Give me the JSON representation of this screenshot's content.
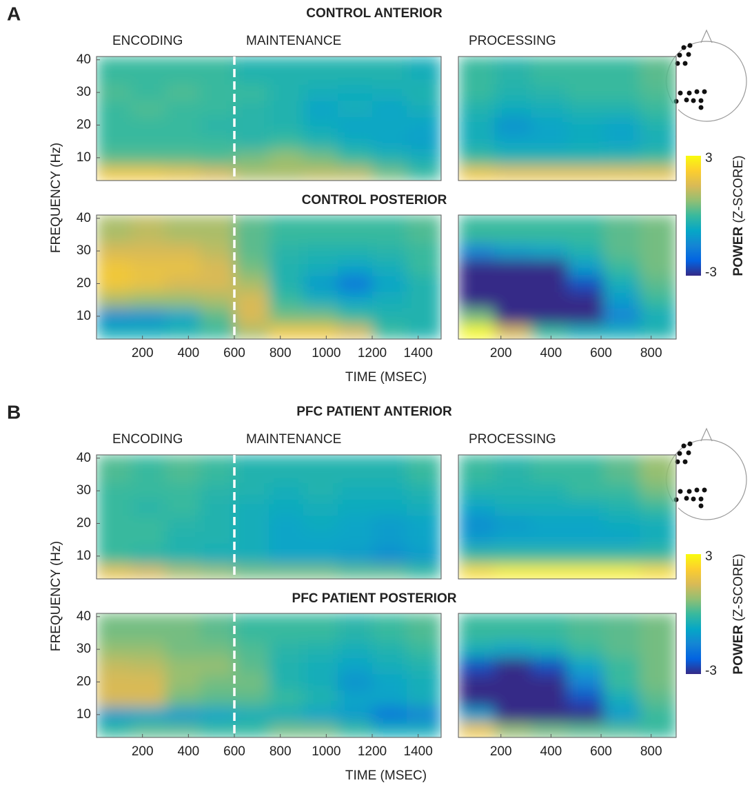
{
  "figure": {
    "colormap": [
      "#352a87",
      "#0363e1",
      "#1485d4",
      "#06a7c6",
      "#38b99e",
      "#92bf73",
      "#d9ba56",
      "#fcce2e",
      "#f9fb0e"
    ],
    "colorbar_lim": [
      -3,
      3
    ],
    "sections": [
      {
        "letter": "A",
        "anterior_title": "CONTROL ANTERIOR",
        "posterior_title": "CONTROL POSTERIOR",
        "phases": [
          "ENCODING",
          "MAINTENANCE",
          "PROCESSING"
        ],
        "ylabel": "FREQUENCY (Hz)",
        "xlabel": "TIME (MSEC)",
        "colorbar": {
          "ticks": [
            3,
            -3
          ],
          "label_bold": "POWER",
          "label": "(Z-SCORE)"
        }
      },
      {
        "letter": "B",
        "anterior_title": "PFC PATIENT ANTERIOR",
        "posterior_title": "PFC PATIENT POSTERIOR",
        "phases": [
          "ENCODING",
          "MAINTENANCE",
          "PROCESSING"
        ],
        "ylabel": "FREQUENCY (Hz)",
        "xlabel": "TIME (MSEC)",
        "colorbar": {
          "ticks": [
            3,
            -3
          ],
          "label_bold": "POWER",
          "label": "(Z-SCORE)"
        }
      }
    ]
  },
  "chart_data": [
    {
      "type": "heatmap",
      "xlim": [
        0,
        1500
      ],
      "ylim": [
        3,
        41
      ],
      "yticks": [
        10,
        20,
        30,
        40
      ],
      "event_line": 600,
      "x_bins": [
        0,
        150,
        300,
        450,
        600,
        750,
        900,
        1050,
        1200,
        1350,
        1500
      ],
      "y_bins": [
        3,
        7.5,
        12.5,
        17.5,
        22.5,
        27.5,
        32.5,
        41
      ],
      "z": [
        [
          2,
          2,
          1.8,
          1.5,
          1,
          1,
          1.2,
          1.2,
          0.5,
          0
        ],
        [
          0.3,
          0.3,
          0.3,
          0.2,
          0.5,
          0.8,
          0.5,
          0,
          -0.3,
          -0.5
        ],
        [
          0,
          0,
          0,
          0,
          -0.2,
          0,
          -0.3,
          -0.6,
          -0.8,
          -0.9
        ],
        [
          0,
          0,
          0,
          -0.2,
          -0.2,
          -0.3,
          -0.6,
          -0.8,
          -0.7,
          -0.8
        ],
        [
          0,
          0.2,
          0,
          0,
          -0.2,
          -0.3,
          -0.8,
          -0.5,
          -0.8,
          -0.5
        ],
        [
          0.2,
          0,
          0.2,
          0,
          0,
          -0.3,
          -0.5,
          -0.6,
          -0.5,
          -0.3
        ],
        [
          0,
          0,
          0,
          0,
          -0.3,
          -0.3,
          -0.3,
          -0.3,
          -0.3,
          -0.5
        ]
      ]
    },
    {
      "type": "heatmap",
      "xlim": [
        30,
        900
      ],
      "ylim": [
        3,
        41
      ],
      "x_bins": [
        30,
        175,
        320,
        465,
        610,
        755,
        900
      ],
      "y_bins": [
        3,
        7.5,
        12.5,
        17.5,
        22.5,
        27.5,
        32.5,
        41
      ],
      "z": [
        [
          2,
          1.8,
          1.8,
          1.8,
          1.8,
          1.8
        ],
        [
          0,
          -0.3,
          -0.3,
          -0.3,
          -0.2,
          0
        ],
        [
          -0.5,
          -0.8,
          -0.8,
          -0.6,
          -0.8,
          -0.5
        ],
        [
          -0.5,
          -1.2,
          -0.8,
          -0.6,
          -0.8,
          -0.3
        ],
        [
          -0.3,
          -0.6,
          -0.5,
          -0.3,
          -0.3,
          0
        ],
        [
          0,
          -0.3,
          -0.2,
          0,
          0,
          0.2
        ],
        [
          0,
          -0.2,
          0,
          0,
          0,
          0.3
        ]
      ]
    },
    {
      "type": "heatmap",
      "xlim": [
        0,
        1500
      ],
      "ylim": [
        3,
        41
      ],
      "yticks": [
        10,
        20,
        30,
        40
      ],
      "xticks": [
        200,
        400,
        600,
        800,
        1000,
        1200,
        1400
      ],
      "event_line": 600,
      "x_bins": [
        0,
        150,
        300,
        450,
        600,
        750,
        900,
        1050,
        1200,
        1350,
        1500
      ],
      "y_bins": [
        3,
        7.5,
        12.5,
        17.5,
        22.5,
        27.5,
        32.5,
        41
      ],
      "z": [
        [
          -0.5,
          -0.5,
          -0.3,
          0,
          1,
          2,
          2,
          1.5,
          0,
          -0.3
        ],
        [
          -1.3,
          -1.2,
          -0.8,
          0.3,
          1.5,
          0.5,
          0.5,
          0,
          -0.3,
          -0.3
        ],
        [
          1,
          0.8,
          0.8,
          1,
          1.5,
          0,
          -0.5,
          -0.8,
          -0.5,
          -0.3
        ],
        [
          2,
          1.8,
          1.5,
          1.5,
          1,
          -0.3,
          -1,
          -1.8,
          -0.8,
          -0.3
        ],
        [
          2,
          1.8,
          1.8,
          1.5,
          0.5,
          -0.3,
          -0.5,
          -0.8,
          -0.5,
          0
        ],
        [
          1.5,
          1.5,
          1.5,
          1.2,
          0.3,
          -0.2,
          -0.3,
          -0.3,
          -0.2,
          0
        ],
        [
          1,
          1.2,
          1,
          1,
          0.3,
          0,
          0,
          0,
          0,
          0.2
        ]
      ]
    },
    {
      "type": "heatmap",
      "xlim": [
        30,
        900
      ],
      "ylim": [
        3,
        41
      ],
      "xticks": [
        200,
        400,
        600,
        800
      ],
      "x_bins": [
        30,
        175,
        320,
        465,
        610,
        755,
        900
      ],
      "y_bins": [
        3,
        7.5,
        12.5,
        17.5,
        22.5,
        27.5,
        32.5,
        41
      ],
      "z": [
        [
          3,
          1.5,
          0,
          -0.5,
          -0.5,
          -0.3
        ],
        [
          0.5,
          -3,
          -3,
          -3,
          -1.5,
          -0.5
        ],
        [
          -3,
          -3,
          -3,
          -3,
          -1,
          0
        ],
        [
          -3,
          -3,
          -3,
          -2.5,
          -0.5,
          0.3
        ],
        [
          -3,
          -3,
          -3,
          -1,
          0,
          0.5
        ],
        [
          -1.5,
          -1,
          -0.8,
          -0.3,
          0.3,
          0.5
        ],
        [
          0,
          0,
          0,
          0,
          0.3,
          0.5
        ]
      ]
    },
    {
      "type": "heatmap",
      "xlim": [
        0,
        1500
      ],
      "ylim": [
        3,
        41
      ],
      "yticks": [
        10,
        20,
        30,
        40
      ],
      "event_line": 600,
      "x_bins": [
        0,
        150,
        300,
        450,
        600,
        750,
        900,
        1050,
        1200,
        1350,
        1500
      ],
      "y_bins": [
        3,
        7.5,
        12.5,
        17.5,
        22.5,
        27.5,
        32.5,
        41
      ],
      "z": [
        [
          1.8,
          1.5,
          1,
          0.8,
          0.5,
          0.5,
          0.5,
          0.3,
          0.3,
          0
        ],
        [
          0,
          -0.2,
          -0.3,
          -0.5,
          -0.5,
          -0.8,
          -0.8,
          -1,
          -1.3,
          -1
        ],
        [
          0,
          0,
          -0.3,
          -0.3,
          -0.5,
          -0.8,
          -0.8,
          -0.8,
          -1,
          -0.8
        ],
        [
          0,
          0,
          -0.2,
          -0.3,
          -0.5,
          -0.8,
          -0.6,
          -0.8,
          -1,
          -0.8
        ],
        [
          0,
          -0.2,
          0,
          -0.3,
          -0.5,
          -0.6,
          -0.5,
          -0.6,
          -0.6,
          -0.5
        ],
        [
          0,
          0,
          0,
          -0.2,
          -0.3,
          -0.5,
          -0.3,
          -0.5,
          -0.5,
          -0.3
        ],
        [
          0.2,
          0,
          0.2,
          0,
          -0.3,
          -0.3,
          -0.3,
          -0.3,
          -0.3,
          0
        ]
      ]
    },
    {
      "type": "heatmap",
      "xlim": [
        30,
        900
      ],
      "ylim": [
        3,
        41
      ],
      "x_bins": [
        30,
        175,
        320,
        465,
        610,
        755,
        900
      ],
      "y_bins": [
        3,
        7.5,
        12.5,
        17.5,
        22.5,
        27.5,
        32.5,
        41
      ],
      "z": [
        [
          2.5,
          2.8,
          2.8,
          2.8,
          2.8,
          2.5
        ],
        [
          0,
          0,
          0,
          0,
          0,
          0
        ],
        [
          -1,
          -0.8,
          -0.8,
          -0.8,
          -0.8,
          -0.5
        ],
        [
          -1.3,
          -1,
          -0.8,
          -0.8,
          -0.6,
          -0.5
        ],
        [
          -0.8,
          -0.5,
          -0.5,
          -0.5,
          -0.3,
          0
        ],
        [
          -0.3,
          -0.3,
          -0.3,
          0,
          0,
          0.5
        ],
        [
          0,
          -0.2,
          0,
          0,
          0.3,
          0.8
        ]
      ]
    },
    {
      "type": "heatmap",
      "xlim": [
        0,
        1500
      ],
      "ylim": [
        3,
        41
      ],
      "yticks": [
        10,
        20,
        30,
        40
      ],
      "xticks": [
        200,
        400,
        600,
        800,
        1000,
        1200,
        1400
      ],
      "event_line": 600,
      "x_bins": [
        0,
        150,
        300,
        450,
        600,
        750,
        900,
        1050,
        1200,
        1350,
        1500
      ],
      "y_bins": [
        3,
        7.5,
        12.5,
        17.5,
        22.5,
        27.5,
        32.5,
        41
      ],
      "z": [
        [
          0,
          0.3,
          0.3,
          0,
          0,
          0.5,
          0.5,
          0,
          -0.5,
          -0.5
        ],
        [
          -1,
          -0.8,
          -1,
          -0.8,
          -0.5,
          -0.5,
          -0.8,
          -1,
          -1.8,
          -1.5
        ],
        [
          1.5,
          1.5,
          0.5,
          0.3,
          0.3,
          0,
          -0.3,
          -0.8,
          -0.8,
          -0.5
        ],
        [
          1.5,
          1.5,
          0.8,
          0.5,
          0.5,
          -0.3,
          -0.5,
          -1.2,
          -0.8,
          -0.5
        ],
        [
          1.3,
          1.2,
          0.8,
          0.8,
          0.3,
          -0.3,
          -0.5,
          -0.8,
          -0.5,
          -0.3
        ],
        [
          0.8,
          0.8,
          0.5,
          0.5,
          0.2,
          -0.2,
          -0.3,
          -0.5,
          -0.3,
          0
        ],
        [
          0.5,
          0.5,
          0.5,
          0.3,
          0,
          0,
          0,
          -0.2,
          0,
          0.2
        ]
      ]
    },
    {
      "type": "heatmap",
      "xlim": [
        30,
        900
      ],
      "ylim": [
        3,
        41
      ],
      "xticks": [
        200,
        400,
        600,
        800
      ],
      "x_bins": [
        30,
        175,
        320,
        465,
        610,
        755,
        900
      ],
      "y_bins": [
        3,
        7.5,
        12.5,
        17.5,
        22.5,
        27.5,
        32.5,
        41
      ],
      "z": [
        [
          2,
          0.8,
          0.5,
          0.3,
          0.2,
          0
        ],
        [
          -1,
          -3,
          -3,
          -3,
          -1,
          0
        ],
        [
          -3,
          -3,
          -3,
          -2.5,
          -0.5,
          0.3
        ],
        [
          -3,
          -3,
          -3,
          -1.5,
          0,
          0.5
        ],
        [
          -2.5,
          -3,
          -2.5,
          -0.8,
          0,
          0.5
        ],
        [
          -0.5,
          -0.8,
          -0.5,
          0,
          0.3,
          0.5
        ],
        [
          0,
          0,
          0,
          0.2,
          0.3,
          0.5
        ]
      ]
    }
  ]
}
